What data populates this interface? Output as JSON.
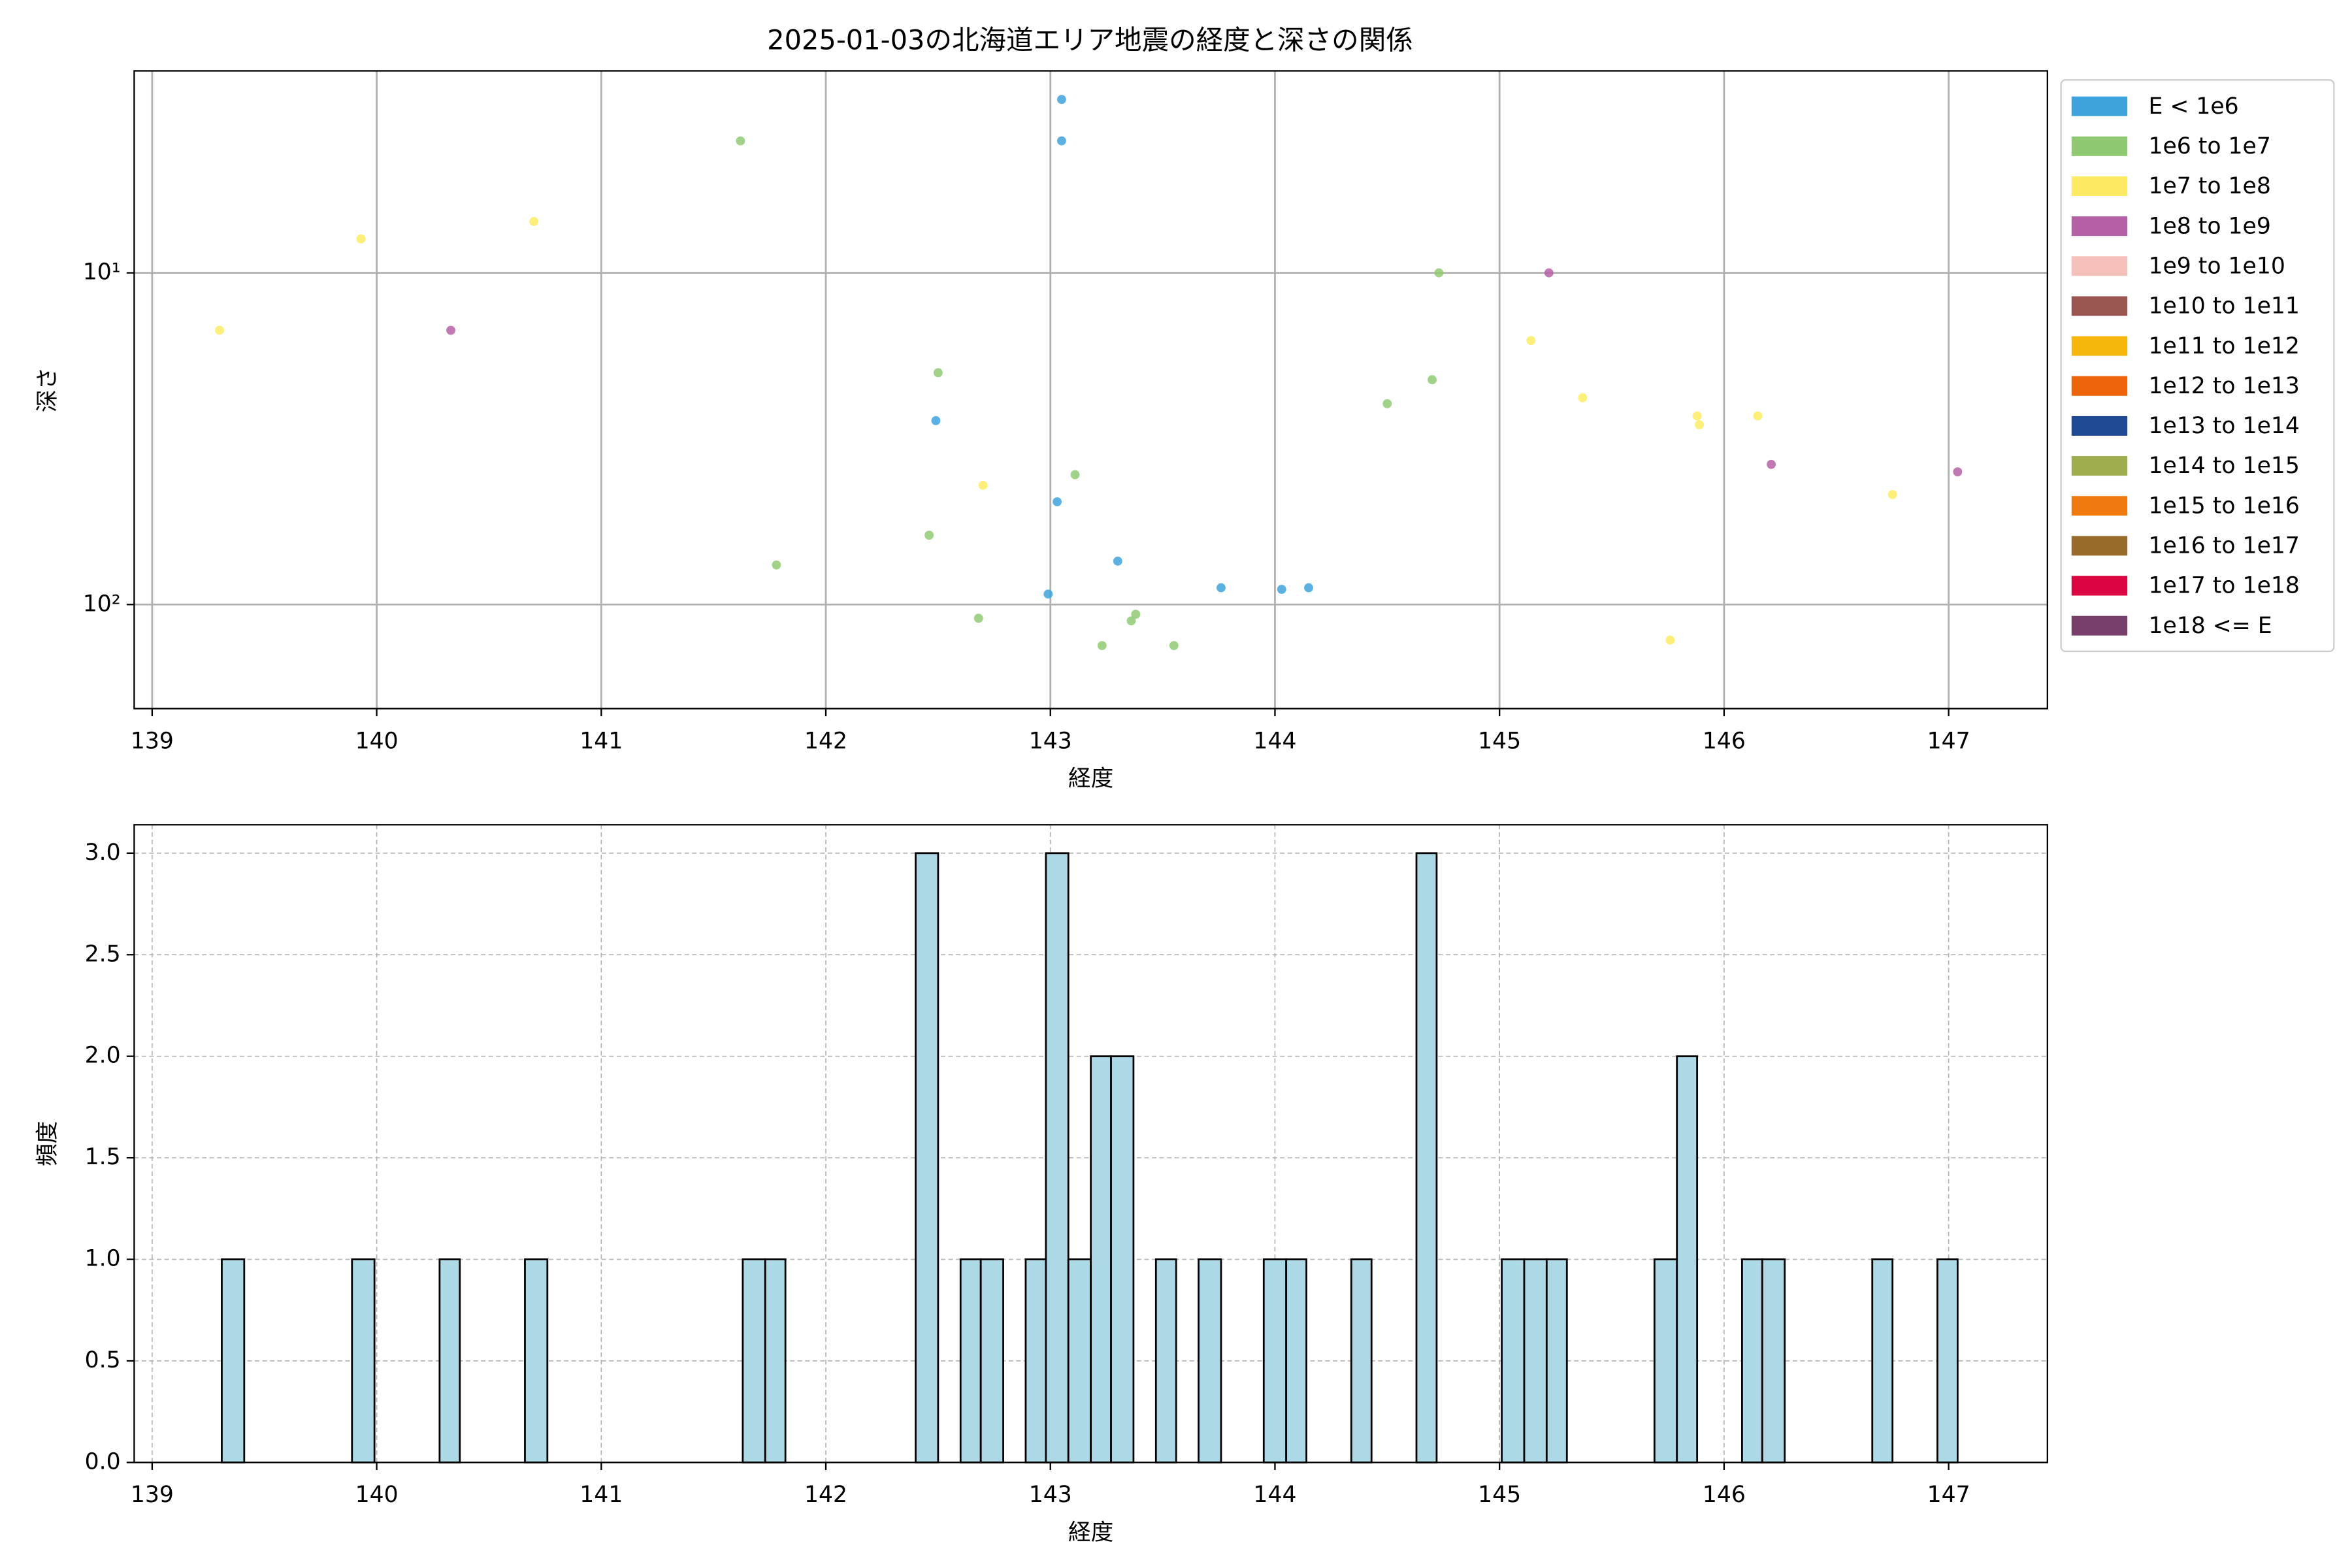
{
  "chart_data": [
    {
      "type": "scatter",
      "title": "2025-01-03の北海道エリア地震の経度と深さの関係",
      "x_label": "経度",
      "y_label": "深さ",
      "xlim": [
        138.92,
        147.44
      ],
      "xticks": [
        139,
        140,
        141,
        142,
        143,
        144,
        145,
        146,
        147
      ],
      "ylim": [
        2.46,
        206
      ],
      "y_log": true,
      "y_inverted": true,
      "yticks": [
        {
          "value": 10,
          "label": "10¹"
        },
        {
          "value": 100,
          "label": "10²"
        }
      ],
      "grid": true,
      "legend": "outside right",
      "series": [
        {
          "name": "E < 1e6",
          "color": "#3ea3dc",
          "x": [
            143.05,
            143.05,
            142.49,
            143.03,
            143.3,
            142.99,
            143.76,
            144.03,
            144.15
          ],
          "values": [
            3.0,
            4.0,
            27.9,
            49,
            74,
            93,
            89,
            90,
            89
          ]
        },
        {
          "name": "1e6 to 1e7",
          "color": "#8fca72",
          "x": [
            141.62,
            142.5,
            143.11,
            142.46,
            141.78,
            142.68,
            143.23,
            143.36,
            143.38,
            143.55,
            144.73,
            144.7,
            144.5
          ],
          "values": [
            4.0,
            20,
            40.6,
            61.8,
            76,
            110,
            133,
            112,
            107,
            133,
            10,
            21,
            24.8
          ]
        },
        {
          "name": "1e7 to 1e8",
          "color": "#fdec63",
          "x": [
            139.3,
            139.93,
            140.7,
            142.7,
            145.14,
            145.37,
            145.88,
            145.89,
            146.15,
            146.75,
            145.76
          ],
          "values": [
            14.9,
            7.9,
            7.0,
            43.7,
            16,
            23.8,
            27,
            28.7,
            27,
            46.6,
            128
          ]
        },
        {
          "name": "1e8 to 1e9",
          "color": "#b661a6",
          "x": [
            140.33,
            145.22,
            146.21,
            147.04
          ],
          "values": [
            14.9,
            10,
            37.8,
            39.8
          ]
        },
        {
          "name": "1e9 to 1e10",
          "color": "#f6c1bb",
          "x": [],
          "values": []
        },
        {
          "name": "1e10 to 1e11",
          "color": "#9a5550",
          "x": [],
          "values": []
        },
        {
          "name": "1e11 to 1e12",
          "color": "#f6b60c",
          "x": [],
          "values": []
        },
        {
          "name": "1e12 to 1e13",
          "color": "#ee640b",
          "x": [],
          "values": []
        },
        {
          "name": "1e13 to 1e14",
          "color": "#1d4a92",
          "x": [],
          "values": []
        },
        {
          "name": "1e14 to 1e15",
          "color": "#9fad4f",
          "x": [],
          "values": []
        },
        {
          "name": "1e15 to 1e16",
          "color": "#ee7a10",
          "x": [],
          "values": []
        },
        {
          "name": "1e16 to 1e17",
          "color": "#996b2b",
          "x": [],
          "values": []
        },
        {
          "name": "1e17 to 1e18",
          "color": "#db0641",
          "x": [],
          "values": []
        },
        {
          "name": "1e18 <= E",
          "color": "#793f6c",
          "x": [],
          "values": []
        }
      ]
    },
    {
      "type": "histogram",
      "x_label": "経度",
      "y_label": "頻度",
      "xlim": [
        138.92,
        147.44
      ],
      "xticks": [
        139,
        140,
        141,
        142,
        143,
        144,
        145,
        146,
        147
      ],
      "ylim": [
        0,
        3.14
      ],
      "yticks": [
        {
          "value": 0,
          "label": "0.0"
        },
        0.5,
        {
          "value": 1,
          "label": "1.0"
        },
        1.5,
        {
          "value": 2,
          "label": "2.0"
        },
        2.5,
        {
          "value": 3,
          "label": "3.0"
        }
      ],
      "grid": true,
      "grid_style": "dashed",
      "color": "#add8e6",
      "edgecolor": "#000000",
      "bins": [
        139.31,
        139.41,
        139.5,
        139.6,
        139.7,
        139.79,
        139.89,
        139.99,
        140.08,
        140.18,
        140.28,
        140.37,
        140.47,
        140.57,
        140.66,
        140.76,
        140.86,
        140.95,
        141.05,
        141.15,
        141.24,
        141.34,
        141.44,
        141.53,
        141.63,
        141.73,
        141.82,
        141.92,
        142.02,
        142.11,
        142.21,
        142.31,
        142.4,
        142.5,
        142.6,
        142.69,
        142.79,
        142.89,
        142.98,
        143.08,
        143.18,
        143.27,
        143.37,
        143.47,
        143.56,
        143.66,
        143.76,
        143.85,
        143.95,
        144.05,
        144.14,
        144.24,
        144.34,
        144.43,
        144.53,
        144.63,
        144.72,
        144.82,
        144.92,
        145.01,
        145.11,
        145.21,
        145.3,
        145.4,
        145.5,
        145.59,
        145.69,
        145.79,
        145.88,
        145.98,
        146.08,
        146.17,
        146.27,
        146.37,
        146.46,
        146.56,
        146.66,
        146.75,
        146.85,
        146.95,
        147.04
      ],
      "values": [
        1,
        0,
        0,
        0,
        0,
        0,
        1,
        0,
        0,
        0,
        1,
        0,
        0,
        0,
        1,
        0,
        0,
        0,
        0,
        0,
        0,
        0,
        0,
        0,
        1,
        1,
        0,
        0,
        0,
        0,
        0,
        0,
        3,
        0,
        1,
        1,
        0,
        1,
        3,
        1,
        2,
        2,
        0,
        1,
        0,
        1,
        0,
        0,
        1,
        1,
        0,
        0,
        1,
        0,
        0,
        3,
        0,
        0,
        0,
        1,
        1,
        1,
        0,
        0,
        0,
        0,
        1,
        2,
        0,
        0,
        1,
        1,
        0,
        0,
        0,
        0,
        1,
        0,
        0,
        1
      ]
    }
  ]
}
